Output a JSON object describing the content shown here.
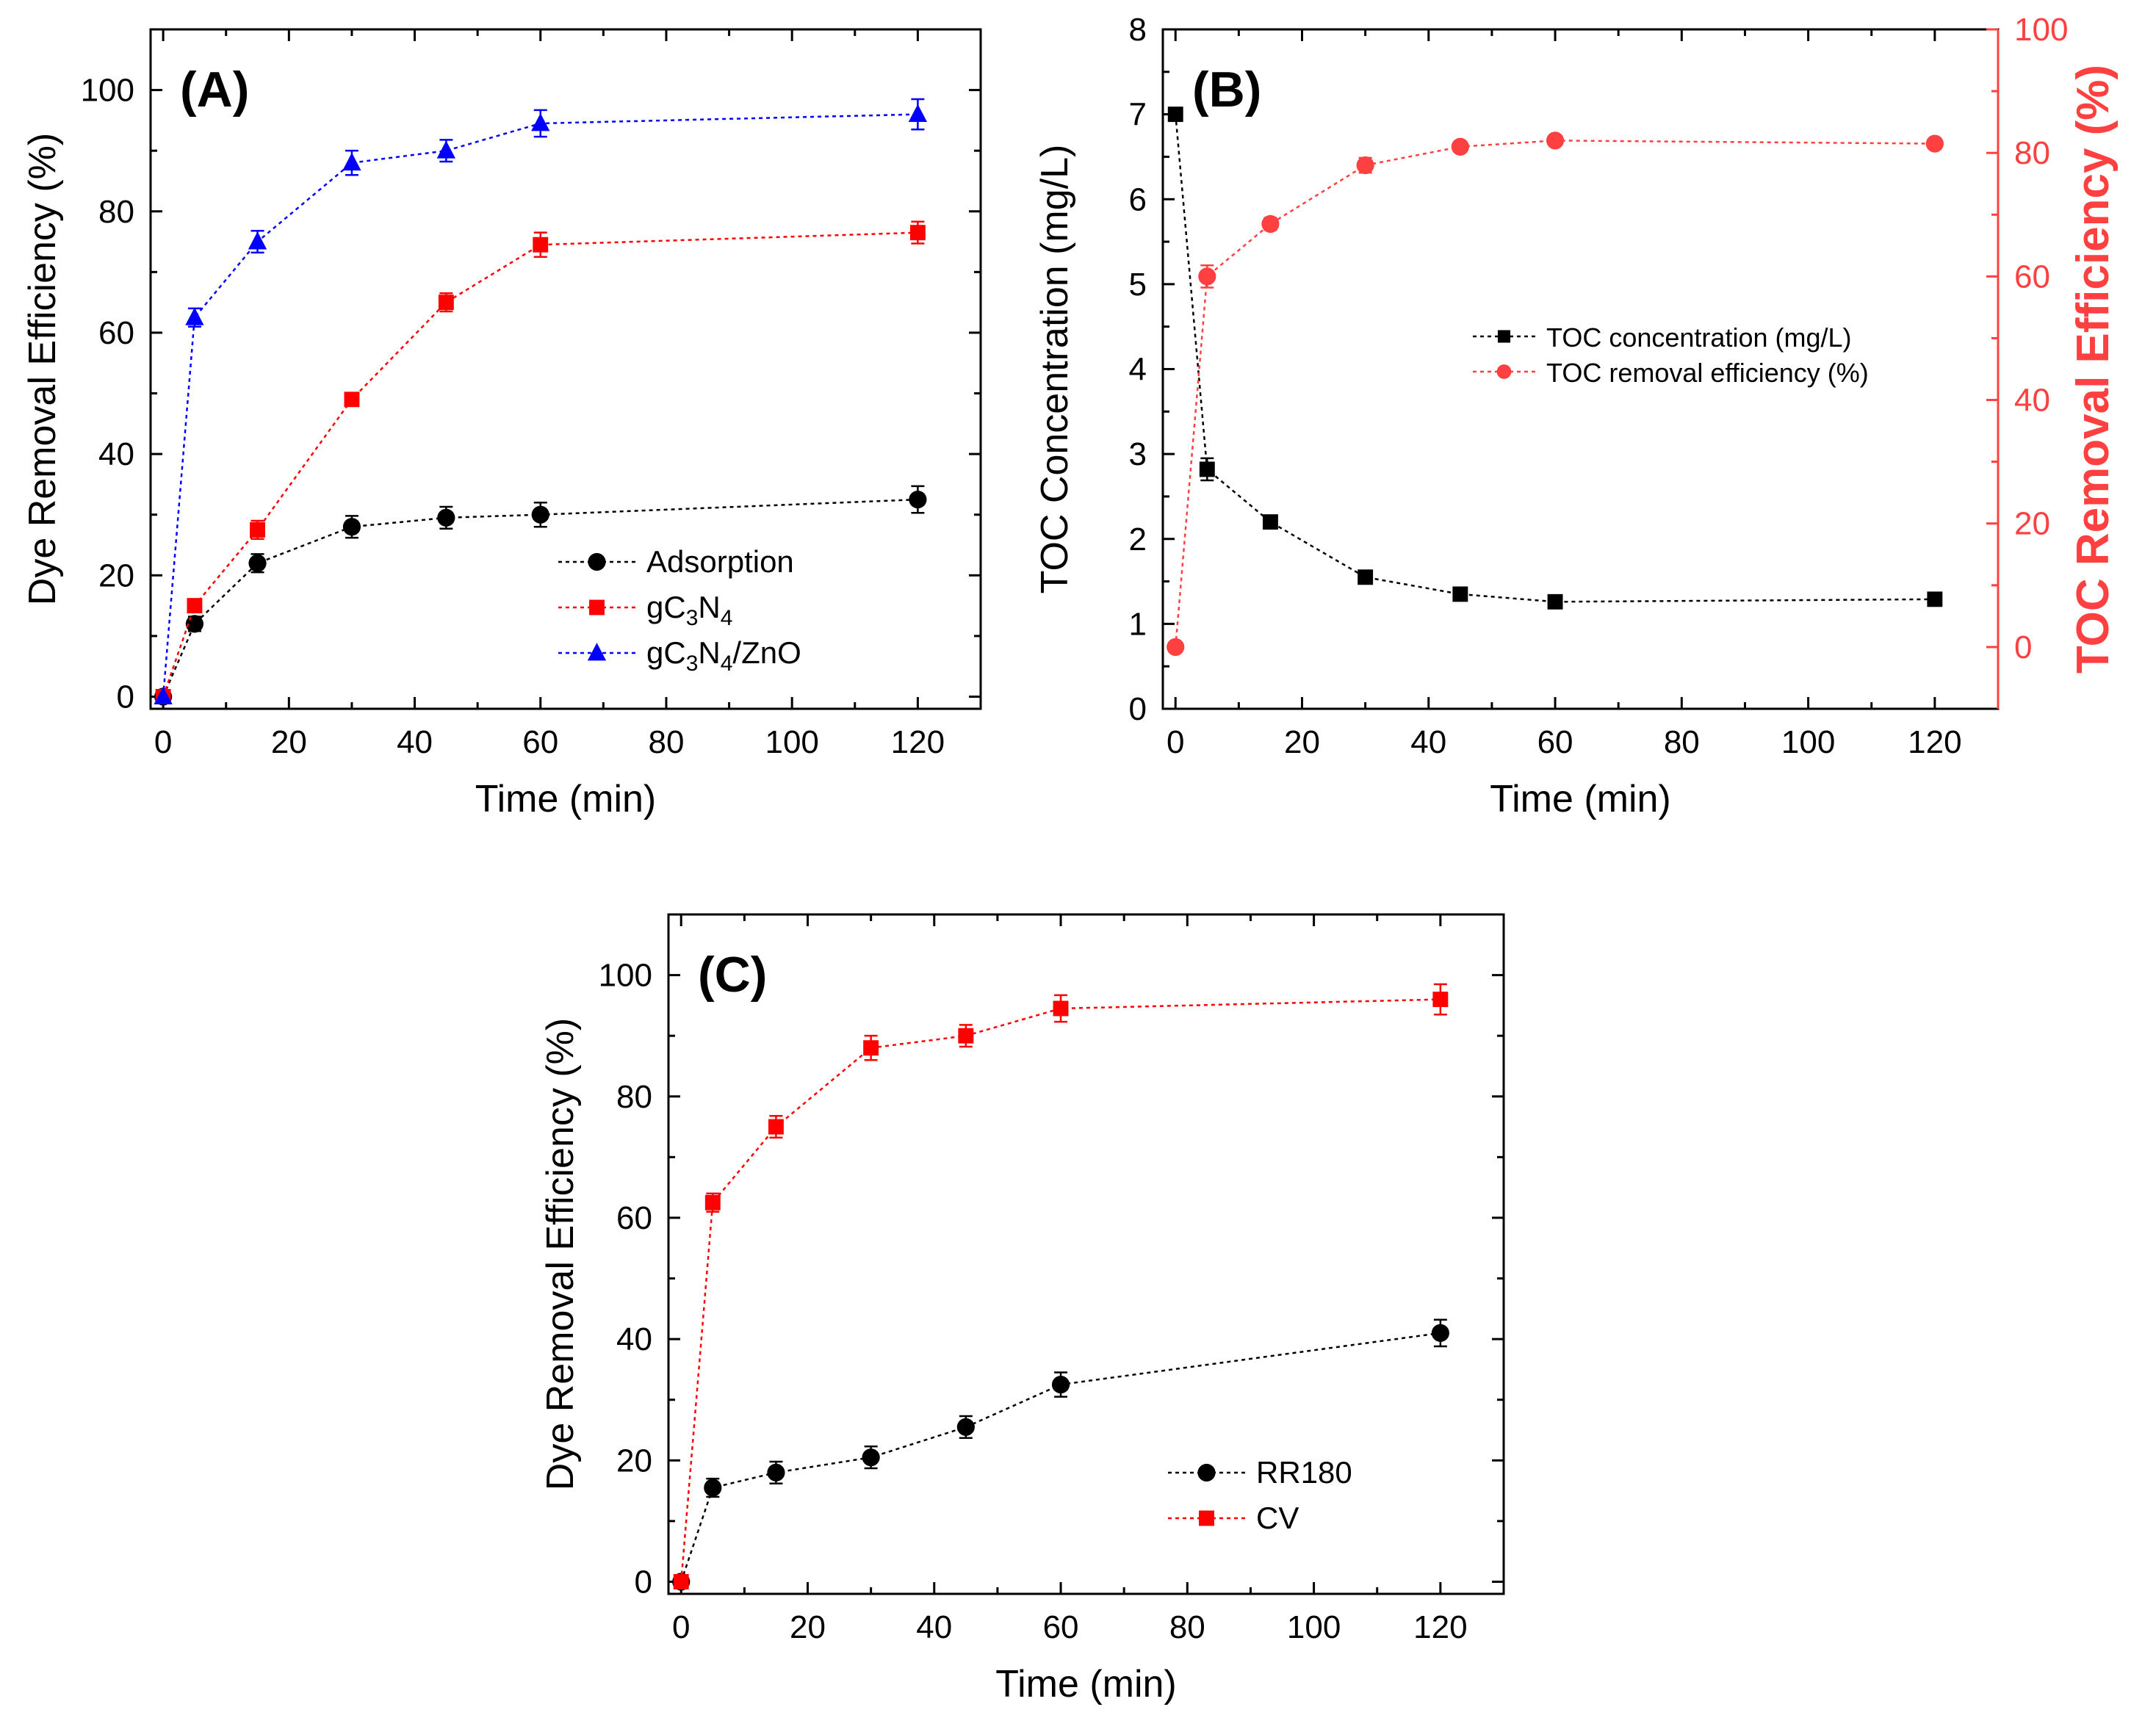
{
  "chart_data": [
    {
      "id": "A",
      "type": "line",
      "panel_label": "(A)",
      "xlabel": "Time (min)",
      "ylabel": "Dye Removal Efficiency (%)",
      "xlim": [
        -2,
        130
      ],
      "ylim": [
        -2,
        110
      ],
      "xticks": [
        0,
        20,
        40,
        60,
        80,
        100,
        120
      ],
      "yticks": [
        0,
        20,
        40,
        60,
        80,
        100
      ],
      "legend_position": "bottom-right",
      "series": [
        {
          "name": "Adsorption",
          "color": "#000000",
          "marker": "circle",
          "x": [
            0,
            5,
            15,
            30,
            45,
            60,
            120
          ],
          "y": [
            0,
            12,
            22,
            28,
            29.5,
            30,
            32.5
          ],
          "err": [
            0,
            1.2,
            1.5,
            1.8,
            1.8,
            2,
            2.2
          ]
        },
        {
          "name": "gC3N4",
          "name_parts": [
            "gC",
            "3",
            "N",
            "4",
            ""
          ],
          "color": "#ff0000",
          "marker": "square",
          "x": [
            0,
            5,
            15,
            30,
            45,
            60,
            120
          ],
          "y": [
            0,
            15,
            27.5,
            49,
            65,
            74.5,
            76.5
          ],
          "err": [
            0,
            1,
            1.5,
            1,
            1.5,
            2,
            1.8
          ]
        },
        {
          "name": "gC3N4/ZnO",
          "name_parts": [
            "gC",
            "3",
            "N",
            "4",
            "/ZnO"
          ],
          "color": "#0000ff",
          "marker": "triangle",
          "x": [
            0,
            5,
            15,
            30,
            45,
            60,
            120
          ],
          "y": [
            0,
            62.5,
            75,
            88,
            90,
            94.5,
            96
          ],
          "err": [
            0,
            1.5,
            1.8,
            2,
            1.8,
            2.2,
            2.5
          ]
        }
      ]
    },
    {
      "id": "B",
      "type": "line",
      "panel_label": "(B)",
      "xlabel": "Time (min)",
      "ylabel": "TOC Concentration (mg/L)",
      "ylabel_right": "TOC Removal Efficiency (%)",
      "xlim": [
        -2,
        130
      ],
      "ylim": [
        0,
        8
      ],
      "ylim_right": [
        -10,
        100
      ],
      "xticks": [
        0,
        20,
        40,
        60,
        80,
        100,
        120
      ],
      "yticks": [
        0,
        1,
        2,
        3,
        4,
        5,
        6,
        7,
        8
      ],
      "yticks_right": [
        0,
        20,
        40,
        60,
        80,
        100
      ],
      "right_axis_color": "#ff4040",
      "legend_position": "center-right",
      "series": [
        {
          "name": "TOC concentration (mg/L)",
          "color": "#000000",
          "marker": "square",
          "axis": "left",
          "x": [
            0,
            5,
            15,
            30,
            45,
            60,
            120
          ],
          "y": [
            7.0,
            2.82,
            2.2,
            1.55,
            1.35,
            1.26,
            1.29
          ],
          "err": [
            0,
            0.13,
            0.05,
            0.07,
            0.04,
            0.03,
            0.03
          ]
        },
        {
          "name": "TOC removal efficiency (%)",
          "color": "#ff4040",
          "marker": "circle",
          "axis": "right",
          "x": [
            0,
            5,
            15,
            30,
            45,
            60,
            120
          ],
          "y": [
            0,
            60,
            68.5,
            78,
            81,
            82,
            81.5
          ],
          "err": [
            0,
            1.8,
            1,
            1.2,
            0.8,
            0.6,
            0.5
          ]
        }
      ]
    },
    {
      "id": "C",
      "type": "line",
      "panel_label": "(C)",
      "xlabel": "Time (min)",
      "ylabel": "Dye Removal Efficiency (%)",
      "xlim": [
        -2,
        130
      ],
      "ylim": [
        -2,
        110
      ],
      "xticks": [
        0,
        20,
        40,
        60,
        80,
        100,
        120
      ],
      "yticks": [
        0,
        20,
        40,
        60,
        80,
        100
      ],
      "legend_position": "bottom-right",
      "series": [
        {
          "name": "RR180",
          "color": "#000000",
          "marker": "circle",
          "x": [
            0,
            5,
            15,
            30,
            45,
            60,
            120
          ],
          "y": [
            0,
            15.5,
            18,
            20.5,
            25.5,
            32.5,
            41
          ],
          "err": [
            0,
            1.5,
            1.8,
            1.8,
            1.8,
            2,
            2.2
          ]
        },
        {
          "name": "CV",
          "color": "#ff0000",
          "marker": "square",
          "x": [
            0,
            5,
            15,
            30,
            45,
            60,
            120
          ],
          "y": [
            0,
            62.5,
            75,
            88,
            90,
            94.5,
            96
          ],
          "err": [
            0,
            1.5,
            1.8,
            2,
            1.8,
            2.2,
            2.5
          ]
        }
      ]
    }
  ]
}
